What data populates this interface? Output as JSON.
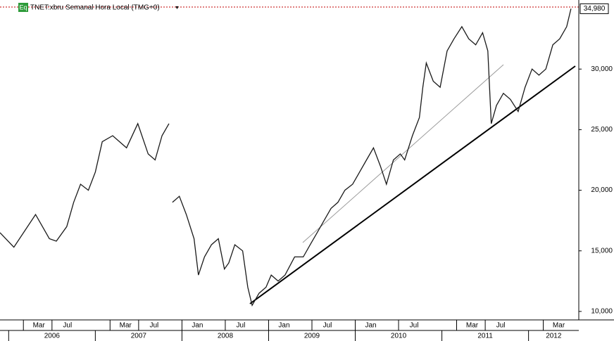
{
  "chart_data": {
    "type": "line",
    "badge": "Eq",
    "title": "TNET:xbru Semanal Hora Local (TMG+0)",
    "color": "#1a1a1a",
    "x": [
      2005.9,
      2006.06,
      2006.31,
      2006.47,
      2006.55,
      2006.67,
      2006.75,
      2006.83,
      2006.92,
      2007.0,
      2007.08,
      2007.2,
      2007.36,
      2007.49,
      2007.61,
      2007.69,
      2007.77,
      2007.85,
      2007.87,
      2007.89,
      2007.97,
      2008.05,
      2008.14,
      2008.19,
      2008.26,
      2008.34,
      2008.42,
      2008.49,
      2008.54,
      2008.61,
      2008.7,
      2008.76,
      2008.81,
      2008.89,
      2008.97,
      2009.03,
      2009.11,
      2009.19,
      2009.3,
      2009.4,
      2009.48,
      2009.56,
      2009.64,
      2009.72,
      2009.8,
      2009.88,
      2009.97,
      2010.05,
      2010.13,
      2010.21,
      2010.29,
      2010.36,
      2010.44,
      2010.52,
      2010.57,
      2010.66,
      2010.74,
      2010.78,
      2010.82,
      2010.9,
      2010.98,
      2011.06,
      2011.14,
      2011.23,
      2011.31,
      2011.39,
      2011.47,
      2011.53,
      2011.57,
      2011.63,
      2011.71,
      2011.79,
      2011.88,
      2011.96,
      2012.04,
      2012.12,
      2012.2,
      2012.28,
      2012.36,
      2012.44,
      2012.49
    ],
    "values": [
      16500,
      15300,
      18000,
      16000,
      15800,
      17000,
      19000,
      20500,
      20000,
      21500,
      24000,
      24500,
      23500,
      25500,
      23000,
      22500,
      24500,
      25500,
      null,
      19000,
      19500,
      18000,
      16000,
      13000,
      14500,
      15500,
      16000,
      13500,
      14000,
      15500,
      15000,
      12000,
      10500,
      11500,
      12000,
      13000,
      12500,
      13000,
      14500,
      14500,
      15500,
      16500,
      17500,
      18500,
      19000,
      20000,
      20500,
      21500,
      22500,
      23500,
      22000,
      20500,
      22500,
      23000,
      22500,
      24500,
      26000,
      28500,
      30500,
      29000,
      28500,
      31500,
      32500,
      33500,
      32500,
      32000,
      33000,
      31500,
      25500,
      27000,
      28000,
      27500,
      26500,
      28500,
      30000,
      29500,
      30000,
      32000,
      32500,
      33500,
      34980
    ],
    "last_price": {
      "value": 34980,
      "label": "34,980"
    },
    "xlim": [
      2005.9,
      2012.58
    ],
    "ylim": [
      9300,
      35700
    ],
    "yticks": [
      {
        "value": 10000,
        "label": "10,000"
      },
      {
        "value": 15000,
        "label": "15,000"
      },
      {
        "value": 20000,
        "label": "20,000"
      },
      {
        "value": 25000,
        "label": "25,000"
      },
      {
        "value": 30000,
        "label": "30,000"
      }
    ],
    "xticks": [
      {
        "value": 2006.17,
        "label": "Mar"
      },
      {
        "value": 2006.5,
        "label": "Jul"
      },
      {
        "value": 2007.17,
        "label": "Mar"
      },
      {
        "value": 2007.5,
        "label": "Jul"
      },
      {
        "value": 2008.0,
        "label": "Jan"
      },
      {
        "value": 2008.5,
        "label": "Jul"
      },
      {
        "value": 2009.0,
        "label": "Jan"
      },
      {
        "value": 2009.5,
        "label": "Jul"
      },
      {
        "value": 2010.0,
        "label": "Jan"
      },
      {
        "value": 2010.5,
        "label": "Jul"
      },
      {
        "value": 2011.17,
        "label": "Mar"
      },
      {
        "value": 2011.5,
        "label": "Jul"
      },
      {
        "value": 2012.17,
        "label": "Mar"
      }
    ],
    "years": [
      {
        "value": 2006,
        "label": "2006"
      },
      {
        "value": 2007,
        "label": "2007"
      },
      {
        "value": 2008,
        "label": "2008"
      },
      {
        "value": 2009,
        "label": "2009"
      },
      {
        "value": 2010,
        "label": "2010"
      },
      {
        "value": 2011,
        "label": "2011"
      },
      {
        "value": 2012,
        "label": "2012"
      }
    ]
  }
}
